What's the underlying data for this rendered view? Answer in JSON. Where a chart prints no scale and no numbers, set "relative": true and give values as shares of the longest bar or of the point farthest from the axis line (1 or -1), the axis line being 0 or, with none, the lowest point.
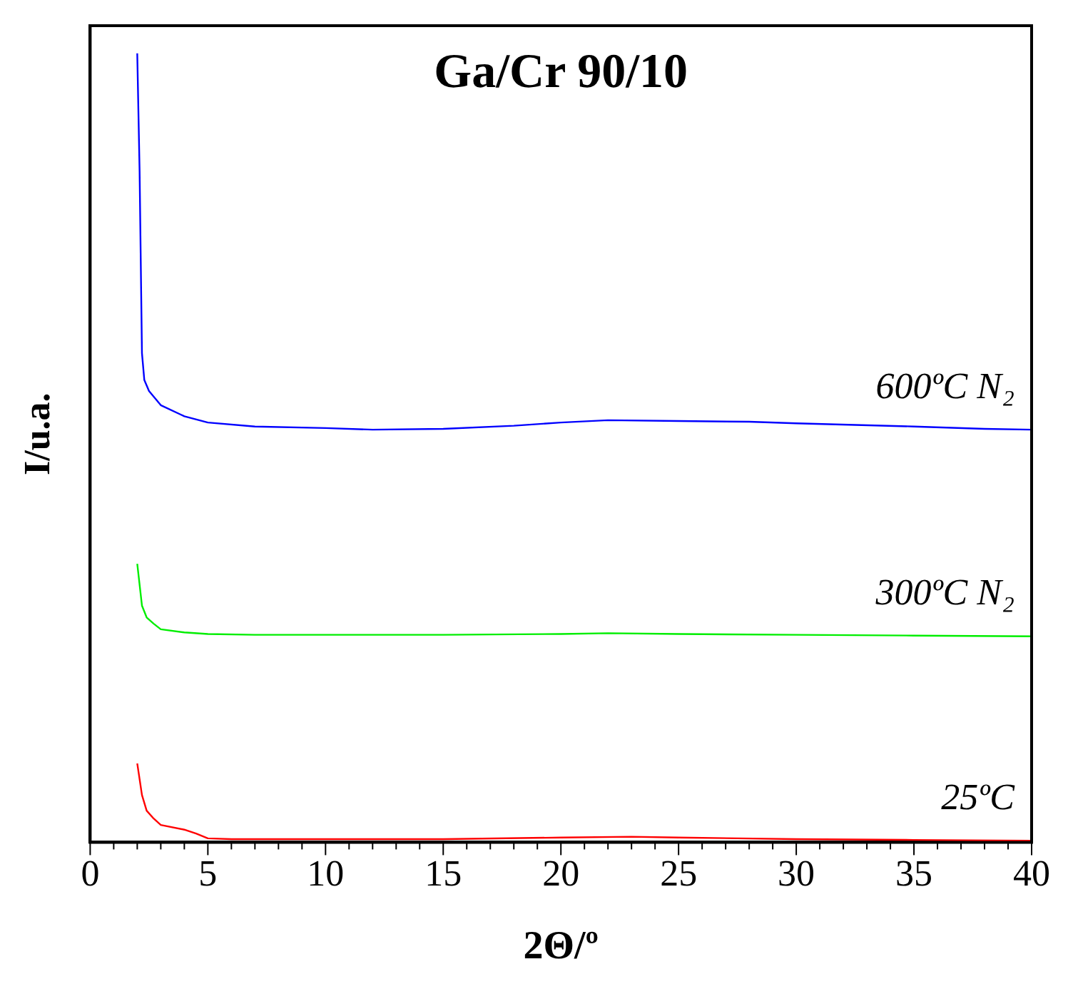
{
  "chart_data": {
    "type": "line",
    "title": "Ga/Cr 90/10",
    "xlabel": "2Θ/º",
    "ylabel": "I/u.a.",
    "relative": true,
    "xlim": [
      0,
      40
    ],
    "xticks": [
      0,
      {
        "value": 1,
        "label": null
      },
      {
        "value": 2,
        "label": null
      },
      {
        "value": 3,
        "label": null
      },
      {
        "value": 4,
        "label": null
      },
      5,
      {
        "value": 6,
        "label": null
      },
      {
        "value": 7,
        "label": null
      },
      {
        "value": 8,
        "label": null
      },
      {
        "value": 9,
        "label": null
      },
      10,
      {
        "value": 11,
        "label": null
      },
      {
        "value": 12,
        "label": null
      },
      {
        "value": 13,
        "label": null
      },
      {
        "value": 14,
        "label": null
      },
      15,
      {
        "value": 16,
        "label": null
      },
      {
        "value": 17,
        "label": null
      },
      {
        "value": 18,
        "label": null
      },
      {
        "value": 19,
        "label": null
      },
      20,
      {
        "value": 21,
        "label": null
      },
      {
        "value": 22,
        "label": null
      },
      {
        "value": 23,
        "label": null
      },
      {
        "value": 24,
        "label": null
      },
      25,
      {
        "value": 26,
        "label": null
      },
      {
        "value": 27,
        "label": null
      },
      {
        "value": 28,
        "label": null
      },
      {
        "value": 29,
        "label": null
      },
      30,
      {
        "value": 31,
        "label": null
      },
      {
        "value": 32,
        "label": null
      },
      {
        "value": 33,
        "label": null
      },
      {
        "value": 34,
        "label": null
      },
      35,
      {
        "value": 36,
        "label": null
      },
      {
        "value": 37,
        "label": null
      },
      {
        "value": 38,
        "label": null
      },
      {
        "value": 39,
        "label": null
      },
      40
    ],
    "grid": false,
    "legend": false,
    "marker": "none",
    "line_style": "solid",
    "series": [
      {
        "name": "600ºC N₂",
        "color": "#0000ff",
        "x": [
          2,
          2.1,
          2.2,
          2.3,
          2.5,
          3,
          4,
          5,
          7,
          10,
          12,
          15,
          18,
          20,
          22,
          25,
          28,
          30,
          35,
          38,
          40
        ],
        "values": [
          1,
          0.85,
          0.62,
          0.586,
          0.572,
          0.554,
          0.54,
          0.532,
          0.527,
          0.525,
          0.523,
          0.524,
          0.528,
          0.532,
          0.535,
          0.534,
          0.533,
          0.531,
          0.527,
          0.524,
          0.523
        ]
      },
      {
        "name": "300ºC N₂",
        "color": "#00ee00",
        "x": [
          2,
          2.2,
          2.4,
          2.7,
          3,
          4,
          5,
          7,
          10,
          15,
          20,
          22,
          25,
          30,
          35,
          40
        ],
        "values": [
          0.353,
          0.3,
          0.285,
          0.277,
          0.27,
          0.266,
          0.264,
          0.263,
          0.263,
          0.263,
          0.264,
          0.265,
          0.264,
          0.263,
          0.262,
          0.261
        ]
      },
      {
        "name": "25ºC",
        "color": "#ff0000",
        "x": [
          2,
          2.2,
          2.4,
          2.7,
          3,
          4,
          4.5,
          5,
          6,
          10,
          15,
          20,
          23,
          25,
          30,
          35,
          40
        ],
        "values": [
          0.1,
          0.06,
          0.04,
          0.03,
          0.022,
          0.016,
          0.011,
          0.005,
          0.004,
          0.004,
          0.004,
          0.006,
          0.007,
          0.006,
          0.004,
          0.003,
          0.002
        ]
      }
    ]
  }
}
